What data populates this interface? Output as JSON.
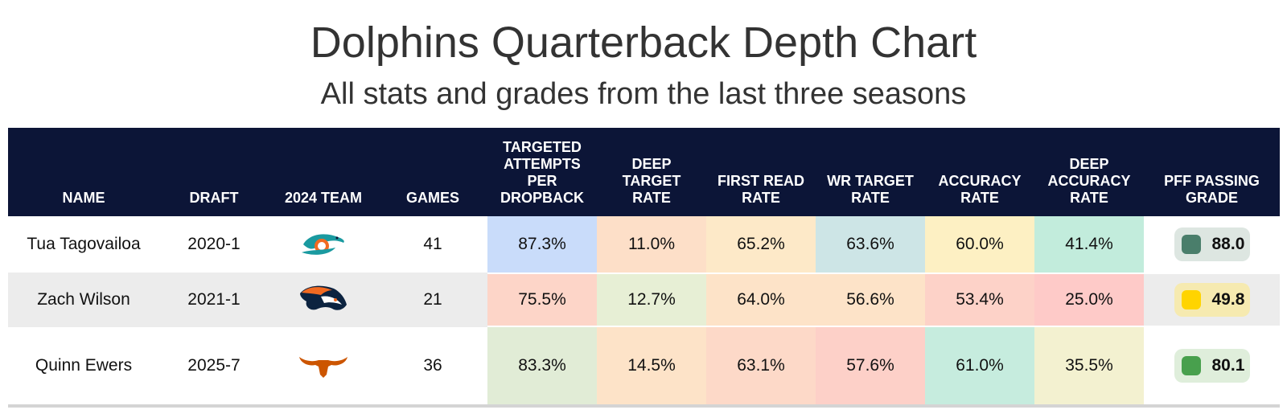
{
  "title": "Dolphins Quarterback Depth Chart",
  "subtitle": "All stats and grades from the last three seasons",
  "chart_data": {
    "type": "table",
    "title": "Dolphins Quarterback Depth Chart",
    "subtitle": "All stats and grades from the last three seasons",
    "columns": [
      "NAME",
      "DRAFT",
      "2024 TEAM",
      "GAMES",
      "TARGETED ATTEMPTS PER DROPBACK",
      "DEEP TARGET RATE",
      "FIRST READ RATE",
      "WR TARGET RATE",
      "ACCURACY RATE",
      "DEEP ACCURACY RATE",
      "PFF PASSING GRADE"
    ],
    "rows": [
      {
        "name": "Tua Tagovailoa",
        "draft": "2020-1",
        "team_icon": "dolphins-logo-icon",
        "games": "41",
        "stats": [
          "87.3%",
          "11.0%",
          "65.2%",
          "63.6%",
          "60.0%",
          "41.4%"
        ],
        "stat_colors": [
          "#c9dcfa",
          "#fddfc8",
          "#fde9c8",
          "#cde5e6",
          "#fdf0c3",
          "#c2ecdc"
        ],
        "grade": "88.0",
        "grade_dot_color": "#4a7e6b",
        "grade_bg_color": "#dde6e1"
      },
      {
        "name": "Zach Wilson",
        "draft": "2021-1",
        "team_icon": "broncos-logo-icon",
        "games": "21",
        "stats": [
          "75.5%",
          "12.7%",
          "64.0%",
          "56.6%",
          "53.4%",
          "25.0%"
        ],
        "stat_colors": [
          "#fdd5c8",
          "#e7efd5",
          "#fde3c8",
          "#fde3c8",
          "#fdd2c8",
          "#fecac8"
        ],
        "grade": "49.8",
        "grade_dot_color": "#ffd400",
        "grade_bg_color": "#f6eab0"
      },
      {
        "name": "Quinn Ewers",
        "draft": "2025-7",
        "team_icon": "longhorns-logo-icon",
        "games": "36",
        "stats": [
          "83.3%",
          "14.5%",
          "63.1%",
          "57.6%",
          "61.0%",
          "35.5%"
        ],
        "stat_colors": [
          "#e1ecd6",
          "#fde3c8",
          "#fdd9c8",
          "#fdd0c8",
          "#c6ecde",
          "#f3f1d0"
        ],
        "grade": "80.1",
        "grade_dot_color": "#48a04d",
        "grade_bg_color": "#dfeedb"
      }
    ]
  },
  "colors": {
    "header_bg": "#0c1537",
    "header_text": "#ffffff",
    "stripe_bg": "#ececec",
    "rule": "#d4d4d4"
  }
}
